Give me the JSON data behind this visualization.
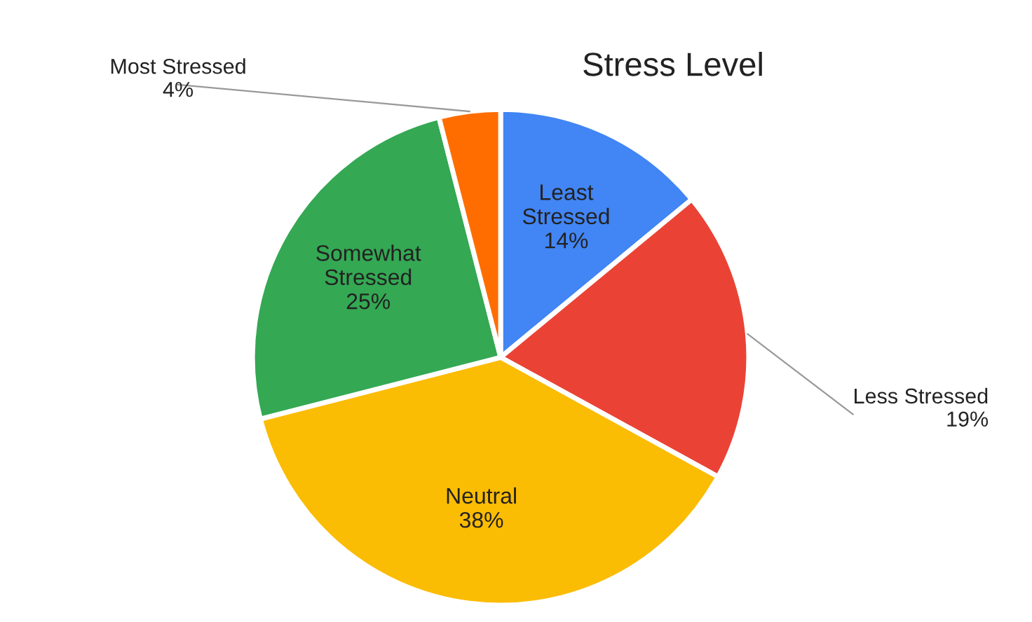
{
  "chart_data": {
    "type": "pie",
    "title": "Stress Level",
    "categories": [
      "Least Stressed",
      "Less Stressed",
      "Neutral",
      "Somewhat Stressed",
      "Most Stressed"
    ],
    "values": [
      14,
      19,
      38,
      25,
      4
    ],
    "colors": [
      "#4285f4",
      "#ea4335",
      "#fbbc04",
      "#34a853",
      "#ff6d01"
    ],
    "value_labels": [
      "14%",
      "19%",
      "38%",
      "25%",
      "4%"
    ],
    "legend": false
  }
}
